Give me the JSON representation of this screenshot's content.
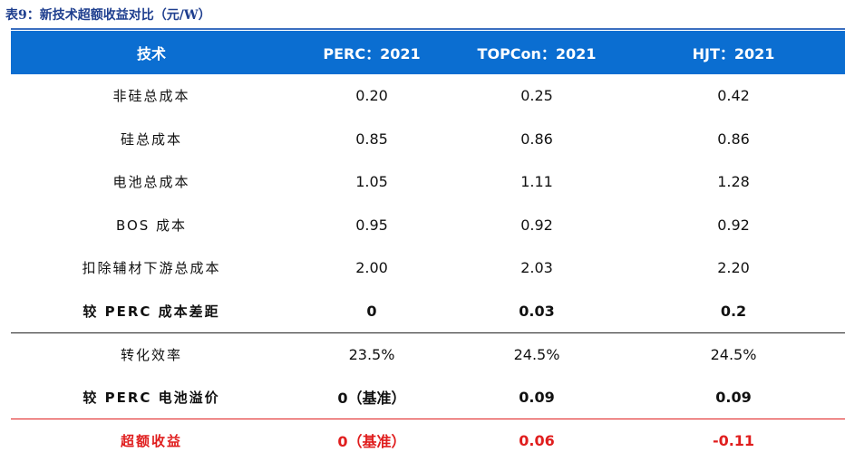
{
  "caption": "表9：新技术超额收益对比（元/W）",
  "table": {
    "headers": [
      "技术",
      "PERC：2021",
      "TOPCon：2021",
      "HJT：2021"
    ],
    "rows": [
      {
        "label": "非硅总成本",
        "values": [
          "0.20",
          "0.25",
          "0.42"
        ]
      },
      {
        "label": "硅总成本",
        "values": [
          "0.85",
          "0.86",
          "0.86"
        ]
      },
      {
        "label": "电池总成本",
        "values": [
          "1.05",
          "1.11",
          "1.28"
        ]
      },
      {
        "label": "BOS 成本",
        "values": [
          "0.95",
          "0.92",
          "0.92"
        ]
      },
      {
        "label": "扣除辅材下游总成本",
        "values": [
          "2.00",
          "2.03",
          "2.20"
        ]
      },
      {
        "label": "较 PERC 成本差距",
        "values": [
          "0",
          "0.03",
          "0.2"
        ]
      },
      {
        "label": "转化效率",
        "values": [
          "23.5%",
          "24.5%",
          "24.5%"
        ]
      },
      {
        "label": "较 PERC 电池溢价",
        "values": [
          "0（基准）",
          "0.09",
          "0.09"
        ]
      },
      {
        "label": "超额收益",
        "values": [
          "0（基准）",
          "0.06",
          "-0.11"
        ]
      }
    ]
  },
  "colors": {
    "header_bg": "#0b6ed1",
    "caption": "#1f3f8f",
    "highlight": "#e01e1e"
  }
}
